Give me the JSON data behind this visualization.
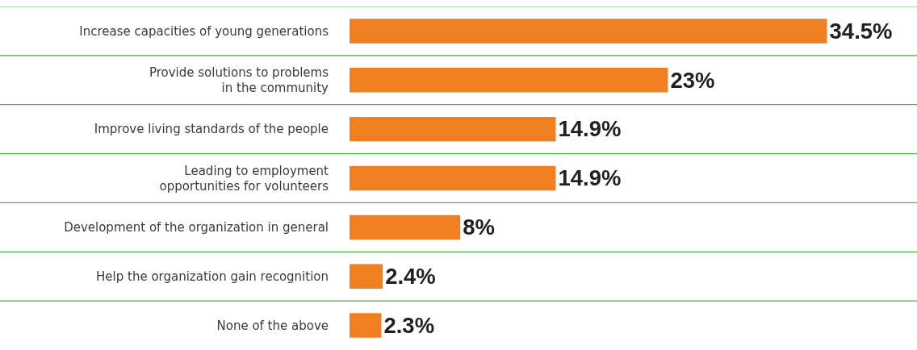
{
  "chart_data": {
    "type": "bar",
    "orientation": "horizontal",
    "categories": [
      "Increase capacities of young generations",
      "Provide solutions to problems in the community",
      "Improve living standards of the people",
      "Leading to employment opportunities for volunteers",
      "Development of the organization in general",
      "Help the organization gain recognition",
      "None of the above"
    ],
    "values": [
      34.5,
      23,
      14.9,
      14.9,
      8,
      2.4,
      2.3
    ],
    "value_labels": [
      "34.5%",
      "23%",
      "14.9%",
      "14.9%",
      "8%",
      "2.4%",
      "2.3%"
    ],
    "color": "#f07f22",
    "xlim": [
      0,
      41
    ],
    "tick_labels": "y",
    "grid": "y"
  }
}
